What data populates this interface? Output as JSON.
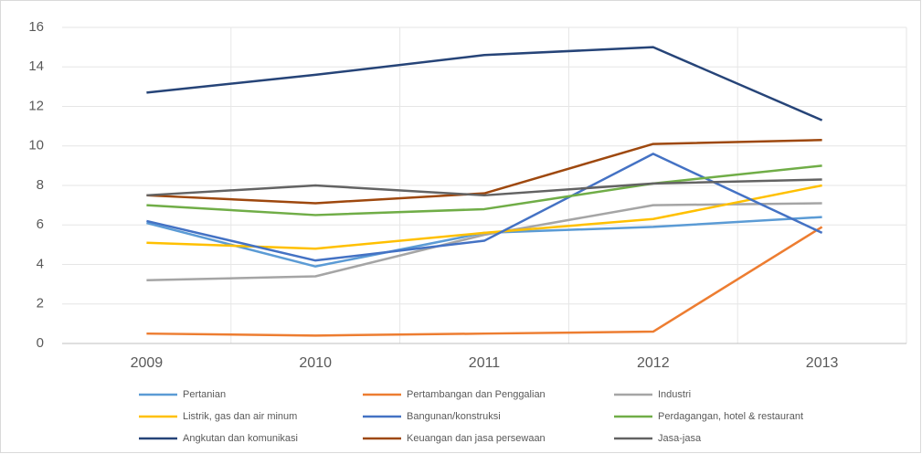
{
  "chart_data": {
    "type": "line",
    "categories": [
      "2009",
      "2010",
      "2011",
      "2012",
      "2013"
    ],
    "series": [
      {
        "name": "Pertanian",
        "color": "#5b9bd5",
        "values": [
          6.1,
          3.9,
          5.6,
          5.9,
          6.4
        ]
      },
      {
        "name": "Pertambangan dan Penggalian",
        "color": "#ed7d31",
        "values": [
          0.5,
          0.4,
          0.5,
          0.6,
          5.9
        ]
      },
      {
        "name": "Industri",
        "color": "#a5a5a5",
        "values": [
          3.2,
          3.4,
          5.5,
          7.0,
          7.1
        ]
      },
      {
        "name": "Listrik, gas dan air minum",
        "color": "#ffc000",
        "values": [
          5.1,
          4.8,
          5.6,
          6.3,
          8.0
        ]
      },
      {
        "name": "Bangunan/konstruksi",
        "color": "#4472c4",
        "values": [
          6.2,
          4.2,
          5.2,
          9.6,
          5.6
        ]
      },
      {
        "name": "Perdagangan, hotel & restaurant",
        "color": "#70ad47",
        "values": [
          7.0,
          6.5,
          6.8,
          8.1,
          9.0
        ]
      },
      {
        "name": "Angkutan dan komunikasi",
        "color": "#264478",
        "values": [
          12.7,
          13.6,
          14.6,
          15.0,
          11.3
        ]
      },
      {
        "name": "Keuangan dan jasa persewaan",
        "color": "#9e480e",
        "values": [
          7.5,
          7.1,
          7.6,
          10.1,
          10.3
        ]
      },
      {
        "name": "Jasa-jasa",
        "color": "#636363",
        "values": [
          7.5,
          8.0,
          7.5,
          8.1,
          8.3
        ]
      }
    ],
    "ylim": [
      0,
      16
    ],
    "yticks": [
      0,
      2,
      4,
      6,
      8,
      10,
      12,
      14,
      16
    ],
    "grid": true
  }
}
